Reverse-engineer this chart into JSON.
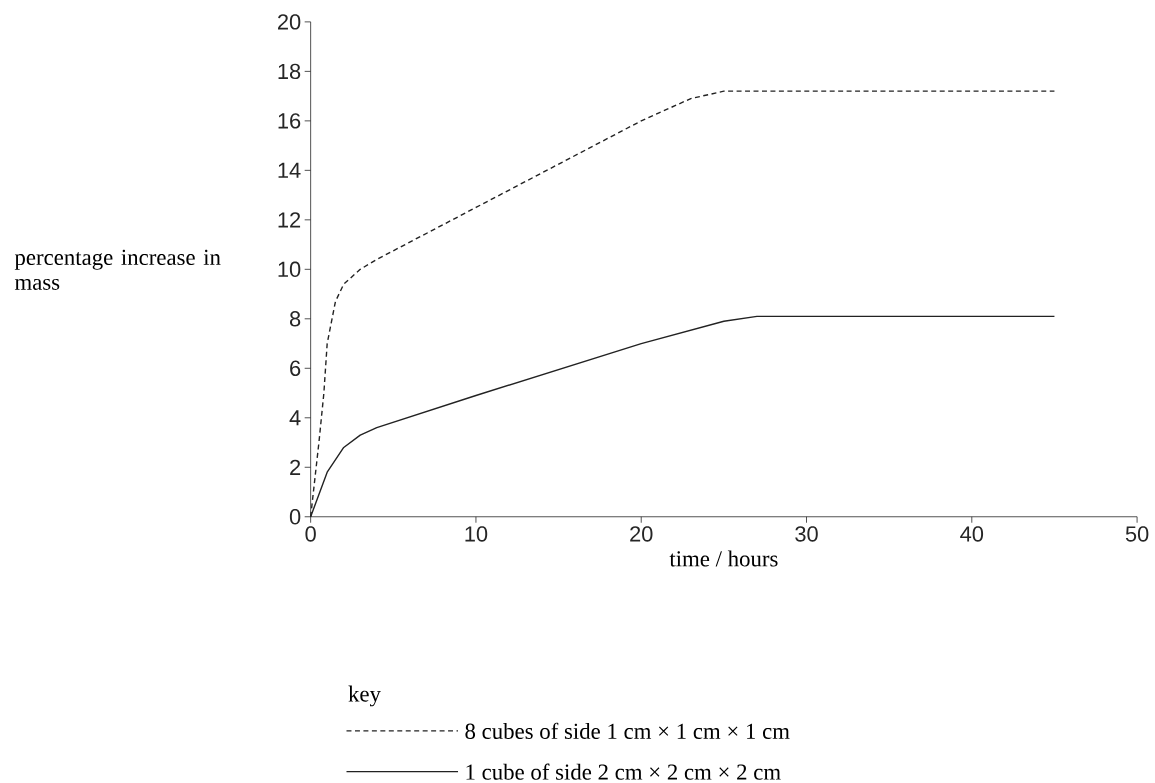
{
  "chart_data": {
    "type": "line",
    "xlabel": "time / hours",
    "ylabel": "percentage increase in mass",
    "legend_title": "key",
    "legend": "bottom",
    "xlim": [
      0,
      50
    ],
    "ylim": [
      0,
      20
    ],
    "xticks": [
      0,
      10,
      20,
      30,
      40,
      50
    ],
    "yticks": [
      0,
      2,
      4,
      6,
      8,
      10,
      12,
      14,
      16,
      18,
      20
    ],
    "grid": false,
    "marker": "none",
    "series": [
      {
        "name": "8 cubes of side 1 cm × 1 cm × 1 cm",
        "color": "#222222",
        "line_style": "dashed",
        "x": [
          0,
          0.5,
          0.8,
          1,
          1.5,
          2,
          3,
          4,
          10,
          20,
          23,
          25,
          45
        ],
        "values": [
          0,
          3,
          5,
          7,
          8.7,
          9.4,
          10,
          10.4,
          12.5,
          16,
          16.9,
          17.2,
          17.2
        ]
      },
      {
        "name": "1 cube of side 2 cm × 2 cm × 2 cm",
        "color": "#222222",
        "line_style": "solid",
        "x": [
          0,
          1,
          2,
          3,
          4,
          10,
          20,
          25,
          27,
          45
        ],
        "values": [
          0,
          1.8,
          2.8,
          3.3,
          3.6,
          4.9,
          7,
          7.9,
          8.1,
          8.1
        ]
      }
    ]
  }
}
